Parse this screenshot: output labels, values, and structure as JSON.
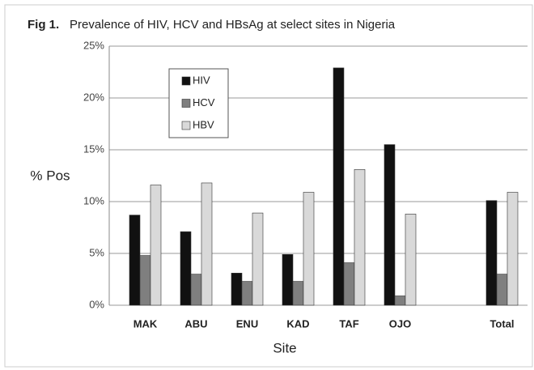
{
  "chart_data": {
    "type": "bar",
    "figure_label": "Fig 1.",
    "title": "Prevalence of HIV, HCV and HBsAg at select sites in Nigeria",
    "y_label": "% Pos",
    "x_label": "Site",
    "categories": [
      "MAK",
      "ABU",
      "ENU",
      "KAD",
      "TAF",
      "OJO",
      null,
      "Total"
    ],
    "series": [
      {
        "name": "HIV",
        "color": "#111111",
        "values": [
          8.7,
          7.1,
          3.1,
          4.9,
          22.9,
          15.5,
          null,
          10.1
        ]
      },
      {
        "name": "HCV",
        "color": "#7f7f7f",
        "values": [
          4.8,
          3.0,
          2.3,
          2.3,
          4.1,
          0.9,
          null,
          3.0
        ]
      },
      {
        "name": "HBV",
        "color": "#d9d9d9",
        "values": [
          11.6,
          11.8,
          8.9,
          10.9,
          13.1,
          8.8,
          null,
          10.9
        ]
      }
    ],
    "ylim": [
      0,
      25
    ],
    "yticks": [
      {
        "value": 0,
        "label": "0%"
      },
      {
        "value": 5,
        "label": "5%"
      },
      {
        "value": 10,
        "label": "10%"
      },
      {
        "value": 15,
        "label": "15%"
      },
      {
        "value": 20,
        "label": "20%"
      },
      {
        "value": 25,
        "label": "25%"
      }
    ],
    "grid": true,
    "legend": "upper left"
  }
}
